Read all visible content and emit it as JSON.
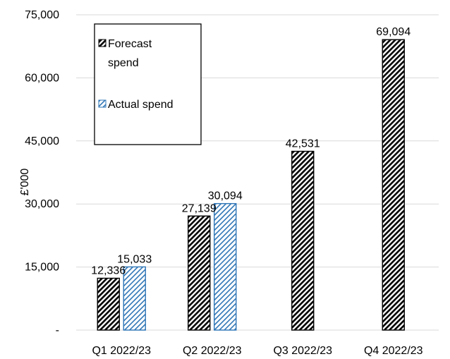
{
  "chart_data": {
    "type": "bar",
    "categories": [
      "Q1 2022/23",
      "Q2 2022/23",
      "Q3 2022/23",
      "Q4 2022/23"
    ],
    "series": [
      {
        "name": "Forecast spend",
        "values": [
          12336,
          27139,
          42531,
          69094
        ],
        "labels": [
          "12,336",
          "27,139",
          "42,531",
          "69,094"
        ],
        "color": "#000000",
        "pattern": "diagonal-hatch-dark"
      },
      {
        "name": "Actual spend",
        "values": [
          15033,
          30094,
          null,
          null
        ],
        "labels": [
          "15,033",
          "30,094",
          null,
          null
        ],
        "color": "#2e75b6",
        "pattern": "diagonal-hatch-blue"
      }
    ],
    "ylabel": "£'000",
    "xlabel": "",
    "title": "",
    "ylim": [
      0,
      75000
    ],
    "yticks": [
      0,
      15000,
      30000,
      45000,
      60000,
      75000
    ],
    "ytick_labels": [
      "-",
      "15,000",
      "30,000",
      "45,000",
      "60,000",
      "75,000"
    ],
    "grid": "horizontal",
    "legend": {
      "position": "top-left",
      "entries": [
        {
          "series": 0,
          "lines": [
            "Forecast",
            "spend"
          ]
        },
        {
          "series": 1,
          "lines": [
            "Actual spend"
          ]
        }
      ]
    }
  }
}
